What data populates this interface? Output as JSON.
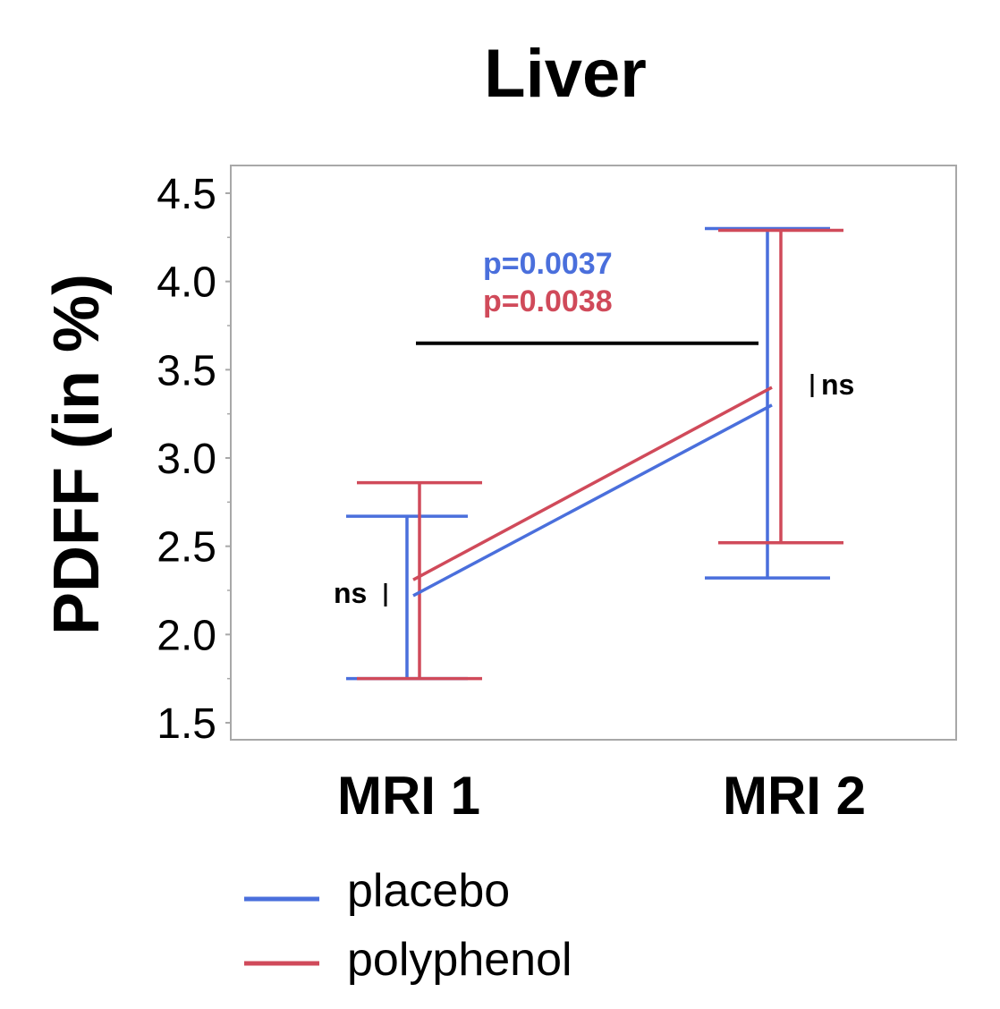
{
  "colors": {
    "placebo": "#4a6fdc",
    "polyphenol": "#d04a5a",
    "axis": "#a8a8a8",
    "text": "#000000"
  },
  "chart_data": {
    "type": "line",
    "title": "Liver",
    "xlabel": "",
    "ylabel": "PDFF (in %)",
    "ylim": [
      1.5,
      4.5
    ],
    "yticks": [
      "1.5",
      "2.0",
      "2.5",
      "3.0",
      "3.5",
      "4.0",
      "4.5"
    ],
    "categories": [
      "MRI 1",
      "MRI 2"
    ],
    "series": [
      {
        "name": "placebo",
        "color": "#4a6fdc",
        "values": [
          2.22,
          3.3
        ],
        "lower": [
          1.75,
          2.32
        ],
        "upper": [
          2.67,
          4.3
        ]
      },
      {
        "name": "polyphenol",
        "color": "#d04a5a",
        "values": [
          2.31,
          3.4
        ],
        "lower": [
          1.75,
          2.52
        ],
        "upper": [
          2.86,
          4.29
        ]
      }
    ],
    "annotations": {
      "p_placebo": "p=0.0037",
      "p_polyphenol": "p=0.0038",
      "ns_mri1": "ns",
      "ns_mri2": "ns",
      "significance_bar_y": 3.65
    },
    "legend": {
      "position": "bottom-left",
      "items": [
        "placebo",
        "polyphenol"
      ]
    }
  }
}
